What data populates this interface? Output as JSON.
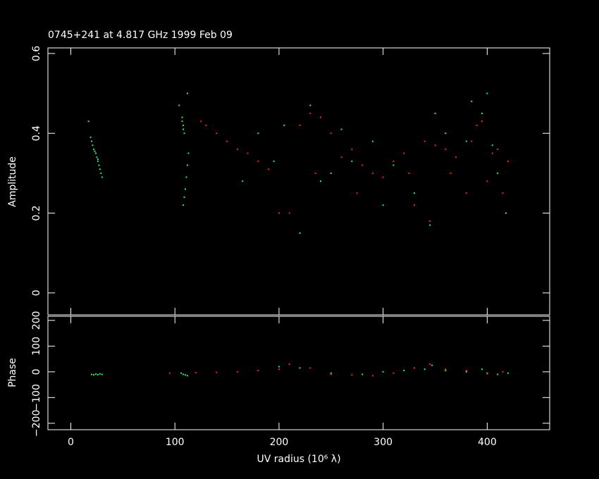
{
  "chart_data": [
    {
      "type": "scatter",
      "title": "0745+241 at 4.817 GHz 1999 Feb 09",
      "y_label": "Amplitude",
      "ylim": [
        -0.055,
        0.614
      ],
      "yticks": [
        0,
        0.2,
        0.4,
        0.6
      ],
      "series": [
        {
          "name": "green",
          "color": "#20f080",
          "x": [
            17,
            19,
            20,
            21,
            22,
            24,
            25,
            26,
            27,
            28,
            29,
            30,
            23,
            26,
            107,
            107,
            108,
            108,
            109,
            108,
            109,
            110,
            111,
            112,
            113,
            104,
            112,
            180,
            205,
            230,
            250,
            270,
            290,
            310,
            330,
            345,
            360,
            385,
            395,
            400,
            405,
            410,
            418,
            220,
            240,
            300,
            350,
            380,
            260,
            165,
            195
          ],
          "values": [
            0.43,
            0.39,
            0.38,
            0.37,
            0.36,
            0.35,
            0.34,
            0.33,
            0.32,
            0.31,
            0.3,
            0.29,
            0.355,
            0.335,
            0.44,
            0.43,
            0.42,
            0.41,
            0.4,
            0.22,
            0.24,
            0.26,
            0.29,
            0.32,
            0.35,
            0.47,
            0.5,
            0.4,
            0.42,
            0.47,
            0.3,
            0.33,
            0.38,
            0.32,
            0.25,
            0.17,
            0.4,
            0.48,
            0.45,
            0.5,
            0.37,
            0.3,
            0.2,
            0.15,
            0.28,
            0.22,
            0.45,
            0.38,
            0.41,
            0.28,
            0.33
          ]
        },
        {
          "name": "red",
          "color": "#ff2020",
          "x": [
            125,
            130,
            140,
            150,
            160,
            170,
            180,
            190,
            200,
            210,
            220,
            230,
            240,
            250,
            260,
            270,
            280,
            290,
            300,
            310,
            320,
            330,
            340,
            345,
            350,
            360,
            370,
            380,
            390,
            395,
            400,
            405,
            410,
            415,
            420,
            235,
            275,
            325,
            365,
            385
          ],
          "values": [
            0.43,
            0.42,
            0.4,
            0.38,
            0.36,
            0.35,
            0.33,
            0.31,
            0.2,
            0.2,
            0.42,
            0.45,
            0.44,
            0.4,
            0.34,
            0.36,
            0.32,
            0.3,
            0.29,
            0.33,
            0.35,
            0.22,
            0.38,
            0.18,
            0.37,
            0.36,
            0.34,
            0.25,
            0.42,
            0.43,
            0.28,
            0.35,
            0.36,
            0.25,
            0.33,
            0.3,
            0.25,
            0.3,
            0.3,
            0.38
          ]
        }
      ]
    },
    {
      "type": "scatter",
      "y_label": "Phase",
      "x_label": "UV radius  (10⁶ λ)",
      "xlim": [
        -22,
        460
      ],
      "xticks": [
        0,
        100,
        200,
        300,
        400
      ],
      "ylim": [
        -225,
        216
      ],
      "yticks": [
        200,
        100,
        0,
        {
          "value": -100,
          "label": "−100"
        },
        {
          "value": -200,
          "label": "−200"
        }
      ],
      "series": [
        {
          "name": "green",
          "color": "#20f080",
          "x": [
            20,
            22,
            24,
            26,
            28,
            30,
            106,
            108,
            110,
            112,
            200,
            220,
            250,
            280,
            300,
            320,
            340,
            347,
            360,
            380,
            400,
            410,
            420,
            395
          ],
          "values": [
            -10,
            -12,
            -9,
            -11,
            -8,
            -10,
            -5,
            -10,
            -12,
            -15,
            20,
            15,
            -5,
            -10,
            0,
            5,
            10,
            25,
            5,
            0,
            -5,
            -10,
            -5,
            10
          ]
        },
        {
          "name": "red",
          "color": "#ff2020",
          "x": [
            95,
            120,
            140,
            160,
            180,
            200,
            210,
            230,
            250,
            270,
            290,
            310,
            330,
            345,
            360,
            380,
            400,
            415
          ],
          "values": [
            -5,
            -3,
            -2,
            0,
            5,
            10,
            30,
            15,
            -10,
            -12,
            -15,
            -5,
            15,
            30,
            10,
            5,
            -8,
            0
          ]
        }
      ]
    }
  ]
}
